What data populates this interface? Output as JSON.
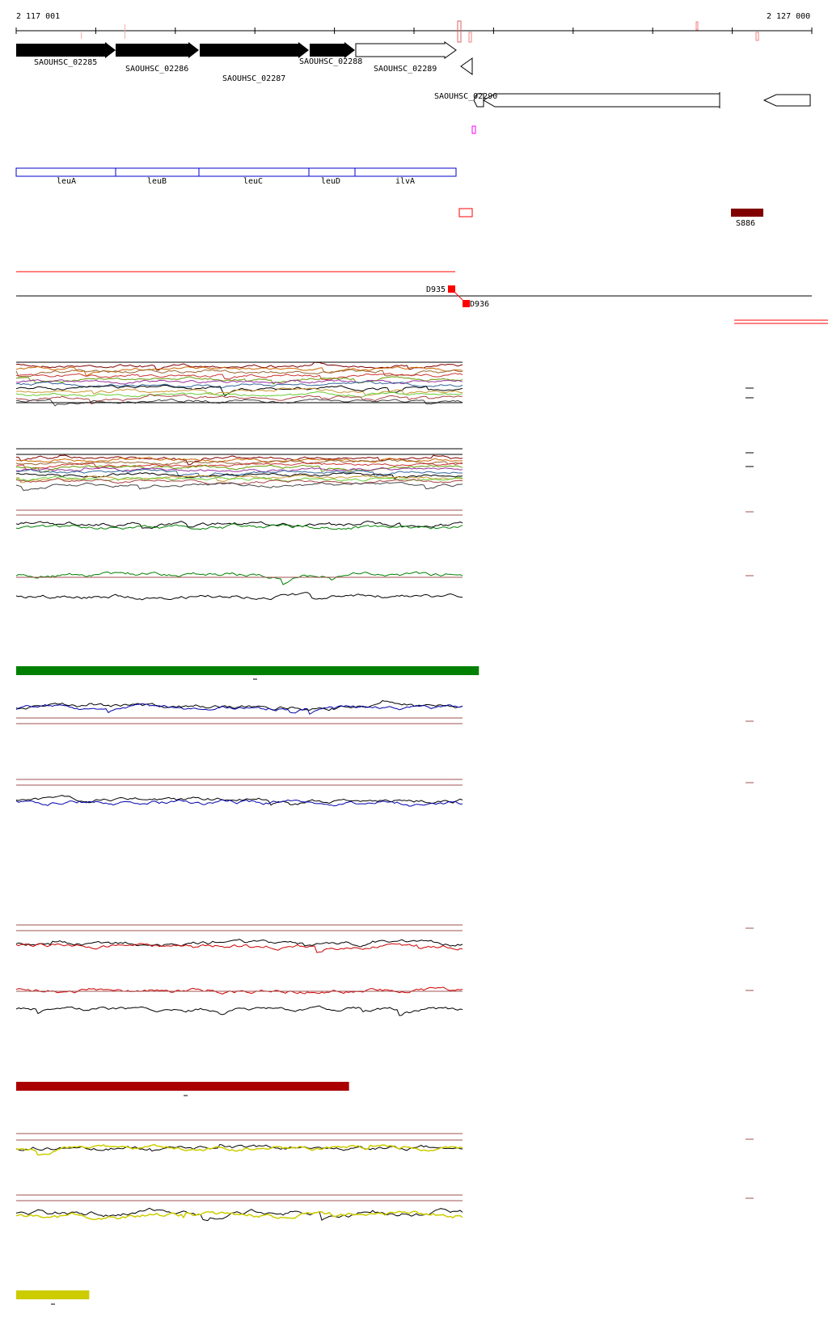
{
  "coordinates": {
    "start_label": "2 117 001",
    "end_label": "2 127 000"
  },
  "colors": {
    "gene_fill": "#000000",
    "operon_outline": "#0000cc",
    "red_marker": "#ff0000",
    "srna_fill": "#800000",
    "magenta_marker": "#ff00ff",
    "pink_marker": "#f08080",
    "threshold_line": "#a05050",
    "green": "#008000",
    "blue": "#0000aa",
    "red_series": "#cc0000",
    "yellow": "#cccc00",
    "dark_red": "#aa0000"
  },
  "genes": [
    {
      "label": "SAOUHSC_02285",
      "strand": "forward",
      "filled": true
    },
    {
      "label": "SAOUHSC_02286",
      "strand": "forward",
      "filled": true
    },
    {
      "label": "SAOUHSC_02287",
      "strand": "forward",
      "filled": true
    },
    {
      "label": "SAOUHSC_02288",
      "strand": "forward",
      "filled": true
    },
    {
      "label": "SAOUHSC_02289",
      "strand": "forward",
      "filled": false
    },
    {
      "label": "SAOUHSC_02290",
      "strand": "reverse",
      "filled": false
    }
  ],
  "operons": [
    {
      "label": "leuA"
    },
    {
      "label": "leuB"
    },
    {
      "label": "leuC"
    },
    {
      "label": "leuD"
    },
    {
      "label": "ilvA"
    }
  ],
  "srna": {
    "label": "S886"
  },
  "markers": [
    {
      "label": "D935"
    },
    {
      "label": "D936"
    }
  ],
  "tracks": {
    "all_conditions": {
      "name": "all-conditions-expression"
    },
    "green_group": {
      "name": "green-condition-expression"
    },
    "blue_group": {
      "name": "blue-condition-expression"
    },
    "red_group": {
      "name": "red-condition-expression"
    },
    "yellow_group": {
      "name": "yellow-condition-expression"
    }
  },
  "condition_bars": [
    {
      "color": "#008000",
      "extent": 0.57
    },
    {
      "color": "#aa0000",
      "extent": 0.41
    },
    {
      "color": "#cccc00",
      "extent": 0.09
    }
  ]
}
